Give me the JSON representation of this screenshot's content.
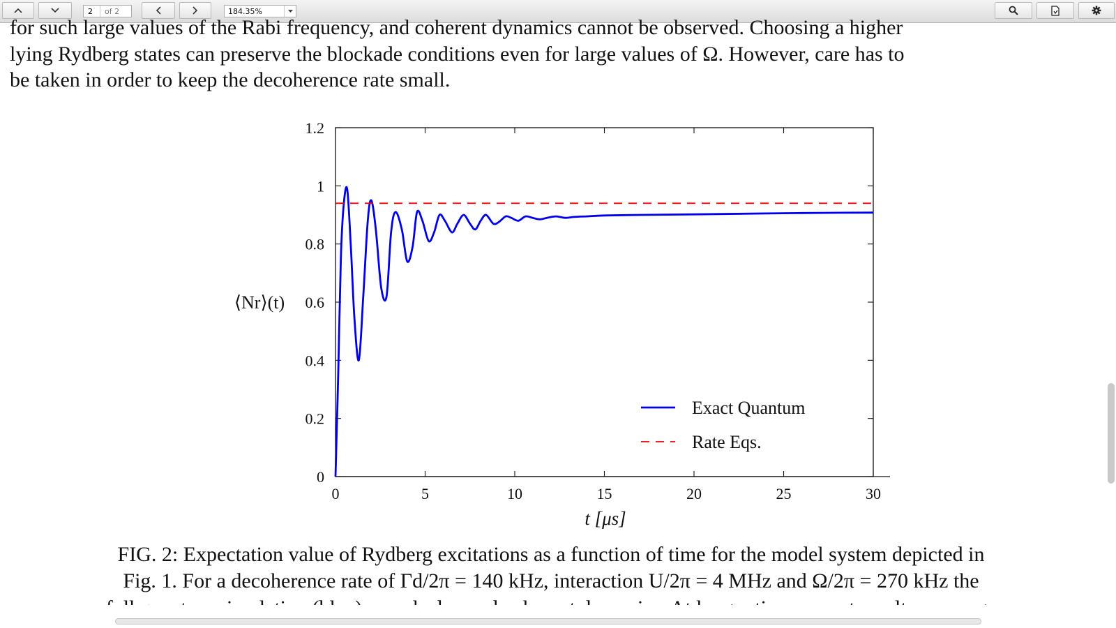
{
  "toolbar": {
    "page_current": "2",
    "page_of": "of 2",
    "zoom_value": "184.35%",
    "icons": {
      "prev_page": "chevron-up-icon",
      "next_page": "chevron-down-icon",
      "back": "chevron-left-icon",
      "forward": "chevron-right-icon",
      "zoom_dropdown": "caret-down-icon",
      "search": "search-icon",
      "save": "document-icon",
      "settings": "gear-icon"
    }
  },
  "document": {
    "line1": "for such large values of the Rabi frequency, and coherent dynamics cannot be observed. Choosing a higher",
    "line2": "lying Rydberg states can preserve the blockade conditions even for large values of Ω. However, care has to",
    "line3": "be taken in order to keep the decoherence rate small.",
    "caption_line1": "FIG. 2: Expectation value of Rydberg excitations as a function of time for the model system depicted in",
    "caption_line2": "Fig. 1. For a decoherence rate of Γd/2π = 140 kHz, interaction U/2π = 4 MHz and Ω/2π = 270 kHz the",
    "caption_line3": "full quantum simulation (blue) reveals damped coherent dynamics. At longer times, exact results converge"
  },
  "chart_data": {
    "type": "line",
    "ylabel": "⟨Nr⟩(t)",
    "xlabel": "t [μs]",
    "xlim": [
      0,
      30
    ],
    "ylim": [
      0,
      1.2
    ],
    "xticks": [
      "0",
      "5",
      "10",
      "15",
      "20",
      "25",
      "30"
    ],
    "yticks": [
      "0",
      "0.2",
      "0.4",
      "0.6",
      "0.8",
      "1",
      "1.2"
    ],
    "grid": false,
    "legend_placement": "bottom-right",
    "series": [
      {
        "name": "Exact Quantum",
        "style": "solid",
        "color": "#0000ee",
        "x": [
          0,
          0.15,
          0.3,
          0.45,
          0.65,
          0.85,
          1.05,
          1.3,
          1.55,
          1.8,
          2.0,
          2.25,
          2.55,
          2.85,
          3.1,
          3.35,
          3.7,
          4.0,
          4.3,
          4.55,
          4.85,
          5.2,
          5.5,
          5.8,
          6.1,
          6.5,
          6.8,
          7.15,
          7.5,
          7.8,
          8.1,
          8.4,
          8.8,
          9.1,
          9.5,
          9.8,
          10.2,
          10.6,
          11.0,
          11.4,
          11.8,
          12.3,
          12.8,
          13.3,
          14.0,
          15.0,
          17.0,
          20.0,
          24.0,
          27.0,
          30.0
        ],
        "y": [
          0,
          0.35,
          0.75,
          0.93,
          0.99,
          0.8,
          0.55,
          0.4,
          0.62,
          0.88,
          0.95,
          0.85,
          0.65,
          0.62,
          0.84,
          0.91,
          0.85,
          0.74,
          0.79,
          0.91,
          0.88,
          0.81,
          0.84,
          0.9,
          0.88,
          0.84,
          0.87,
          0.9,
          0.87,
          0.85,
          0.88,
          0.9,
          0.87,
          0.875,
          0.895,
          0.89,
          0.88,
          0.895,
          0.89,
          0.885,
          0.89,
          0.895,
          0.89,
          0.893,
          0.895,
          0.898,
          0.9,
          0.902,
          0.905,
          0.907,
          0.908
        ]
      },
      {
        "name": "Rate Eqs.",
        "style": "dashed",
        "color": "#ee0000",
        "x": [
          0,
          30
        ],
        "y": [
          0.94,
          0.94
        ]
      }
    ]
  }
}
